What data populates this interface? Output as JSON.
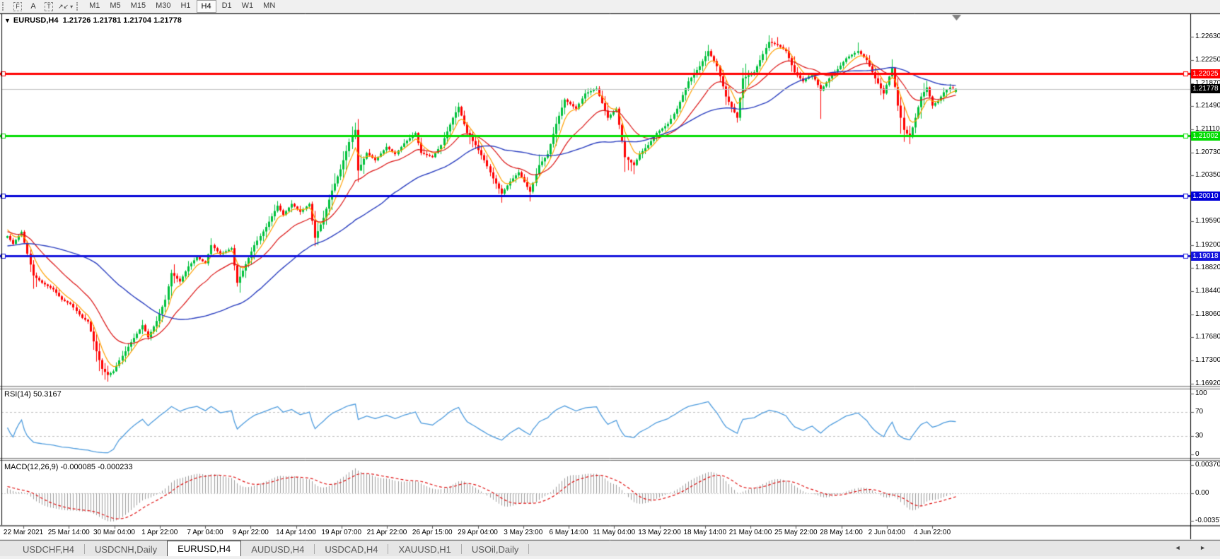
{
  "toolbar": {
    "icons": [
      {
        "name": "fibonacci-icon",
        "glyph": "F"
      },
      {
        "name": "text-icon",
        "glyph": "A"
      },
      {
        "name": "text-label-icon",
        "glyph": "T"
      },
      {
        "name": "arrows-icon",
        "glyph": "↗↙",
        "caret": "▾"
      }
    ],
    "timeframes": [
      "M1",
      "M5",
      "M15",
      "M30",
      "H1",
      "H4",
      "D1",
      "W1",
      "MN"
    ],
    "active_timeframe": "H4"
  },
  "chart": {
    "title_symbol": "EURUSD,H4",
    "title_ohlc": "1.21726 1.21781 1.21704 1.21778",
    "menu_caret": "▼",
    "price_axis_ticks": [
      "1.22630",
      "1.22250",
      "1.21870",
      "1.21490",
      "1.21110",
      "1.20730",
      "1.20350",
      "1.19970",
      "1.19590",
      "1.19200",
      "1.18820",
      "1.18440",
      "1.18060",
      "1.17680",
      "1.17300",
      "1.16920"
    ],
    "price_range": {
      "top": 1.2302,
      "bottom": 1.1688
    },
    "hlines": [
      {
        "value": 1.22025,
        "label": "1.22025",
        "color": "#FF0000",
        "width": 3
      },
      {
        "value": 1.21002,
        "label": "1.21002",
        "color": "#00DC00",
        "width": 3
      },
      {
        "value": 1.2001,
        "label": "1.20010",
        "color": "#0000D8",
        "width": 3
      },
      {
        "value": 1.19018,
        "label": "1.19018",
        "color": "#1515DD",
        "width": 3
      }
    ],
    "bid": {
      "value": 1.21778,
      "label": "1.21778",
      "badge_bg": "#000000",
      "line_color": "#C0C0C0"
    }
  },
  "rsi": {
    "label": "RSI(14)",
    "value": "50.3167",
    "axis_labels": [
      "100",
      "70",
      "30",
      "0"
    ],
    "levels": [
      70,
      30
    ]
  },
  "macd": {
    "label": "MACD(12,26,9)",
    "main_value": "-0.000085",
    "signal_value": "-0.000233",
    "axis_labels": [
      "0.003701",
      "0.00",
      "-0.003572"
    ],
    "axis_values": [
      0.003701,
      0.0,
      -0.003572
    ]
  },
  "dates": [
    "22 Mar 2021",
    "25 Mar 14:00",
    "30 Mar 04:00",
    "1 Apr 22:00",
    "7 Apr 04:00",
    "9 Apr 22:00",
    "14 Apr 14:00",
    "19 Apr 07:00",
    "21 Apr 22:00",
    "26 Apr 15:00",
    "29 Apr 04:00",
    "3 May 23:00",
    "6 May 14:00",
    "11 May 04:00",
    "13 May 22:00",
    "18 May 14:00",
    "21 May 04:00",
    "25 May 22:00",
    "28 May 14:00",
    "2 Jun 04:00",
    "4 Jun 22:00"
  ],
  "tabs": [
    {
      "label": "USDCHF,H4",
      "active": false
    },
    {
      "label": "USDCNH,Daily",
      "active": false
    },
    {
      "label": "EURUSD,H4",
      "active": true
    },
    {
      "label": "AUDUSD,H4",
      "active": false
    },
    {
      "label": "USDCAD,H4",
      "active": false
    },
    {
      "label": "XAUUSD,H1",
      "active": false
    },
    {
      "label": "USOil,Daily",
      "active": false
    }
  ],
  "tab_arrows": "◄ ►",
  "colors": {
    "bull": "#00C13C",
    "bear": "#FF0000",
    "doji": "#000000",
    "ma_fast": "#FFA000",
    "ma_mid": "#DC1414",
    "ma_slow": "#2B3FC0",
    "rsi_line": "#4E9CDE",
    "macd_hist": "#9E9E9E",
    "macd_signal": "#E01010",
    "level_dash": "#C0C0C0",
    "axis_line": "#000000",
    "panel_border": "#787878",
    "shift_marker": "#808080"
  },
  "series": {
    "bars": 331,
    "last_bar": {
      "open": 1.21726,
      "high": 1.21781,
      "low": 1.21704,
      "close": 1.21778
    },
    "waypoints": [
      [
        0,
        1.1935
      ],
      [
        2,
        1.1922
      ],
      [
        5,
        1.1942
      ],
      [
        9,
        1.187
      ],
      [
        12,
        1.1858
      ],
      [
        16,
        1.1847
      ],
      [
        19,
        1.183
      ],
      [
        22,
        1.1823
      ],
      [
        26,
        1.18
      ],
      [
        28,
        1.1794
      ],
      [
        31,
        1.1745
      ],
      [
        33,
        1.1716
      ],
      [
        35,
        1.1706,
        null,
        1.1695
      ],
      [
        37,
        1.1712
      ],
      [
        39,
        1.173
      ],
      [
        43,
        1.176
      ],
      [
        47,
        1.1788
      ],
      [
        49,
        1.1768
      ],
      [
        52,
        1.1795
      ],
      [
        55,
        1.183
      ],
      [
        57,
        1.1874
      ],
      [
        60,
        1.186
      ],
      [
        63,
        1.1885
      ],
      [
        66,
        1.19
      ],
      [
        69,
        1.189
      ],
      [
        71,
        1.192,
        1.1927,
        null
      ],
      [
        74,
        1.1905
      ],
      [
        78,
        1.1915
      ],
      [
        80,
        1.1858
      ],
      [
        82,
        1.1878
      ],
      [
        86,
        1.192
      ],
      [
        90,
        1.195
      ],
      [
        94,
        1.1985
      ],
      [
        96,
        1.197
      ],
      [
        99,
        1.1988
      ],
      [
        102,
        1.1975
      ],
      [
        105,
        1.1988
      ],
      [
        107,
        1.1932
      ],
      [
        110,
        1.1965
      ],
      [
        113,
        1.201
      ],
      [
        116,
        1.2045
      ],
      [
        119,
        1.209
      ],
      [
        121,
        1.211,
        1.2117,
        null
      ],
      [
        122,
        1.2043
      ],
      [
        125,
        1.2072
      ],
      [
        128,
        1.206
      ],
      [
        132,
        1.2082
      ],
      [
        135,
        1.207
      ],
      [
        138,
        1.2088
      ],
      [
        142,
        1.2105
      ],
      [
        144,
        1.2072
      ],
      [
        148,
        1.2065
      ],
      [
        151,
        1.2085
      ],
      [
        155,
        1.213
      ],
      [
        157,
        1.2148,
        1.2155,
        null
      ],
      [
        160,
        1.2105
      ],
      [
        163,
        1.2085
      ],
      [
        166,
        1.206
      ],
      [
        169,
        1.203
      ],
      [
        172,
        1.2005,
        null,
        1.199
      ],
      [
        175,
        1.2025
      ],
      [
        178,
        1.204
      ],
      [
        182,
        1.2008,
        null,
        1.1992
      ],
      [
        185,
        1.2052
      ],
      [
        188,
        1.207
      ],
      [
        191,
        1.212
      ],
      [
        194,
        1.216
      ],
      [
        198,
        1.2145
      ],
      [
        201,
        1.217
      ],
      [
        205,
        1.2178,
        1.2182,
        null
      ],
      [
        209,
        1.213
      ],
      [
        212,
        1.2145
      ],
      [
        215,
        1.2065
      ],
      [
        218,
        1.2052,
        null,
        1.2037
      ],
      [
        220,
        1.207
      ],
      [
        223,
        1.2085
      ],
      [
        226,
        1.2105
      ],
      [
        230,
        1.212
      ],
      [
        233,
        1.2145
      ],
      [
        237,
        1.219
      ],
      [
        241,
        1.2215
      ],
      [
        244,
        1.224,
        1.2248,
        null
      ],
      [
        247,
        1.2215
      ],
      [
        250,
        1.2165
      ],
      [
        254,
        1.213,
        null,
        1.2122
      ],
      [
        256,
        1.2195
      ],
      [
        260,
        1.2205
      ],
      [
        263,
        1.2235
      ],
      [
        265,
        1.2255,
        1.2266,
        null
      ],
      [
        268,
        1.225,
        1.2263,
        null
      ],
      [
        271,
        1.224
      ],
      [
        274,
        1.2205
      ],
      [
        277,
        1.219
      ],
      [
        280,
        1.2202
      ],
      [
        283,
        1.2175,
        null,
        1.2128
      ],
      [
        286,
        1.2195
      ],
      [
        289,
        1.221
      ],
      [
        292,
        1.2228
      ],
      [
        296,
        1.224,
        1.2254,
        null
      ],
      [
        299,
        1.2225
      ],
      [
        302,
        1.2195
      ],
      [
        305,
        1.217
      ],
      [
        308,
        1.2212
      ],
      [
        310,
        1.215
      ],
      [
        312,
        1.211
      ],
      [
        314,
        1.2098,
        null,
        1.209
      ],
      [
        316,
        1.213
      ],
      [
        318,
        1.2165
      ],
      [
        320,
        1.218,
        1.2185,
        null
      ],
      [
        322,
        1.215
      ],
      [
        324,
        1.2158
      ],
      [
        326,
        1.2172
      ],
      [
        328,
        1.218
      ],
      [
        330,
        1.21778
      ]
    ]
  }
}
